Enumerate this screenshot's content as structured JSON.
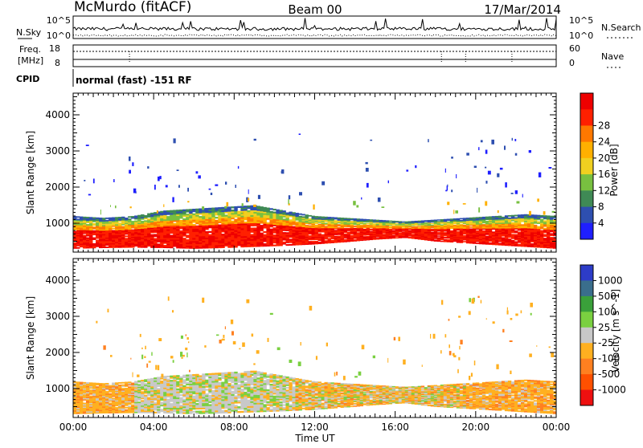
{
  "header": {
    "station": "McMurdo (fitACF)",
    "beam": "Beam 00",
    "date": "17/Mar/2014"
  },
  "noise_panel": {
    "left_label": "N.Sky",
    "right_label": "N.Search",
    "left_ticks": [
      "10^5",
      "10^0"
    ],
    "right_ticks": [
      "10^5",
      "10^0"
    ]
  },
  "freq_panel": {
    "left_label_top": "Freq.",
    "left_label_unit": "[MHz]",
    "left_ticks": [
      "18",
      "8"
    ],
    "right_label": "Nave",
    "right_ticks": [
      "60",
      "0"
    ]
  },
  "cpid": {
    "label": "CPID",
    "value": "normal (fast) -151 RF"
  },
  "colors": {
    "power_scale": [
      "#1f1fff",
      "#2e4fb0",
      "#3f8a55",
      "#78c040",
      "#f0d020",
      "#ffb000",
      "#ff7800",
      "#ff2000",
      "#ee0000"
    ],
    "velocity_scale": [
      "#2d3cc8",
      "#3a6e8c",
      "#3aa03a",
      "#7ad040",
      "#c8c8c8",
      "#ffb020",
      "#ff8020",
      "#ff5000",
      "#ee1010"
    ]
  },
  "chart_data": [
    {
      "type": "heatmap",
      "name": "power",
      "ylabel": "Slant Range [km]",
      "yticks": [
        "1000",
        "2000",
        "3000",
        "4000"
      ],
      "ylim": [
        200,
        4600
      ],
      "xlim": [
        0,
        24
      ],
      "colorbar_label": "Power [dB]",
      "colorbar_ticks": [
        "4",
        "8",
        "12",
        "16",
        "20",
        "24",
        "28"
      ],
      "colorbar_range": [
        0,
        32
      ],
      "bands": [
        {
          "x": [
            0,
            1.5,
            3,
            4.5,
            6,
            7.5,
            9,
            10.5,
            12,
            13.5,
            15,
            16.5,
            18,
            19.5,
            21,
            22.5,
            24
          ],
          "range_low": [
            300,
            320,
            330,
            320,
            300,
            320,
            350,
            380,
            420,
            480,
            550,
            600,
            500,
            450,
            400,
            350,
            300
          ],
          "range_high": [
            1200,
            1150,
            1200,
            1350,
            1400,
            1450,
            1500,
            1350,
            1200,
            1150,
            1100,
            1050,
            1100,
            1150,
            1200,
            1250,
            1200
          ]
        }
      ]
    },
    {
      "type": "heatmap",
      "name": "velocity",
      "ylabel": "Slant Range [km]",
      "yticks": [
        "1000",
        "2000",
        "3000",
        "4000"
      ],
      "ylim": [
        200,
        4600
      ],
      "xlim": [
        0,
        24
      ],
      "xticks": [
        "00:00",
        "04:00",
        "08:00",
        "12:00",
        "16:00",
        "20:00",
        "00:00"
      ],
      "xlabel": "Time UT",
      "colorbar_label": "Velocity [m s^-1]",
      "colorbar_ticks": [
        "1000",
        "500",
        "100",
        "25",
        "-25",
        "-100",
        "-500",
        "-1000"
      ]
    }
  ]
}
